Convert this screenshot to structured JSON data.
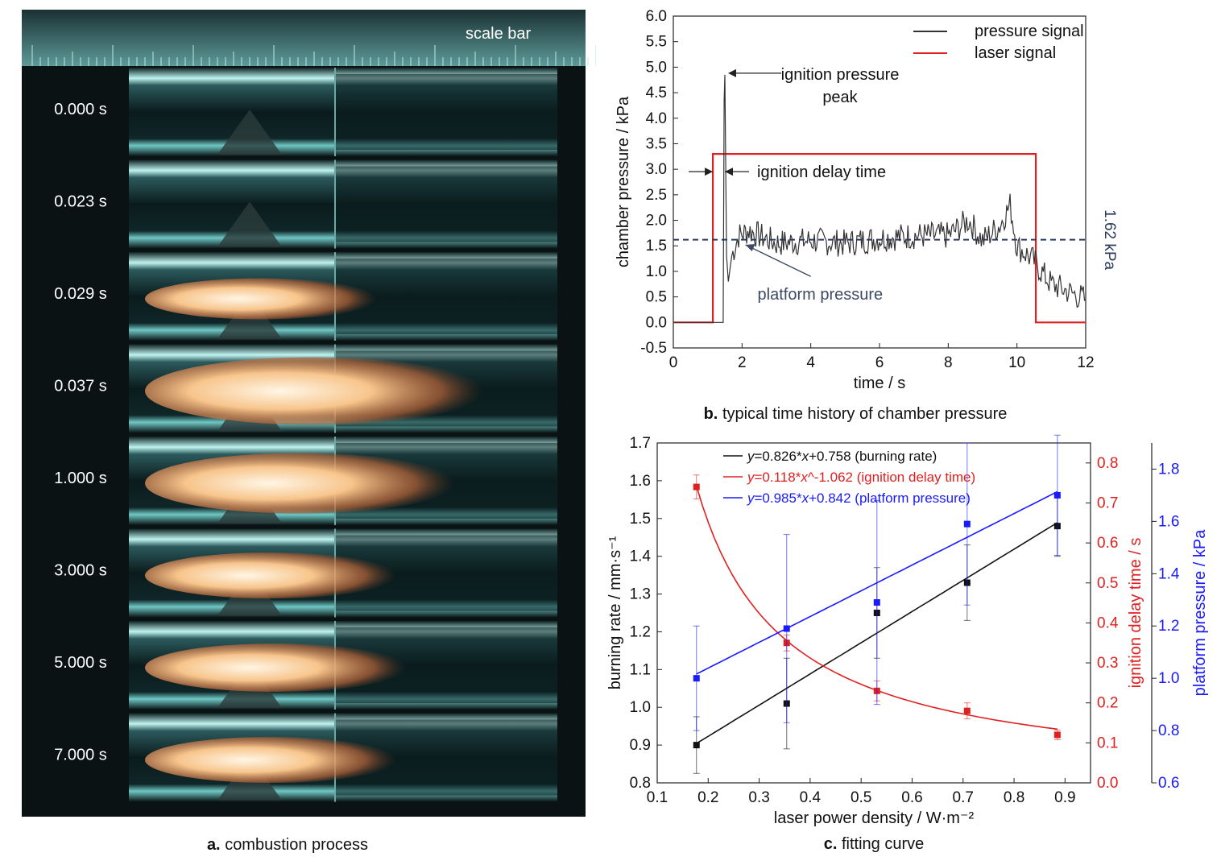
{
  "panel_a": {
    "scale_bar_label": "scale bar",
    "frames": [
      "0.000 s",
      "0.023 s",
      "0.029 s",
      "0.037 s",
      "1.000 s",
      "3.000 s",
      "5.000 s",
      "7.000 s"
    ],
    "flame_intensity": [
      0,
      0,
      0.45,
      1.0,
      0.85,
      0.55,
      0.6,
      0.55
    ],
    "caption_letter": "a.",
    "caption_text": "combustion process"
  },
  "chart_data": [
    {
      "type": "line",
      "title": "",
      "caption_letter": "b.",
      "caption_text": "typical time history of chamber pressure",
      "xlabel": "time / s",
      "ylabel": "chamber pressure / kPa",
      "xlim": [
        0,
        12
      ],
      "ylim": [
        -0.5,
        6.0
      ],
      "xticks": [
        "0",
        "2",
        "4",
        "6",
        "8",
        "10",
        "12"
      ],
      "yticks": [
        "-0.5",
        "0.0",
        "0.5",
        "1.0",
        "1.5",
        "2.0",
        "2.5",
        "3.0",
        "3.5",
        "4.0",
        "4.5",
        "5.0",
        "5.5",
        "6.0"
      ],
      "legend": {
        "position": "top-right",
        "entries": [
          {
            "name": "pressure signal",
            "color": "#333333"
          },
          {
            "name": "laser signal",
            "color": "#e02020"
          }
        ]
      },
      "series": [
        {
          "name": "laser signal",
          "color": "#e02020",
          "x": [
            0,
            1.15,
            1.15,
            10.55,
            10.55,
            12
          ],
          "y": [
            0.0,
            0.0,
            3.3,
            3.3,
            0.0,
            0.0
          ]
        },
        {
          "name": "pressure signal",
          "color": "#333333",
          "x": [
            0,
            1.45,
            1.48,
            1.5,
            1.55,
            1.6,
            1.7,
            1.9,
            2.2,
            2.5,
            3.0,
            4.0,
            5.0,
            6.0,
            7.0,
            8.0,
            8.6,
            9.0,
            9.5,
            9.8,
            10.0,
            10.5,
            10.7,
            11.0,
            11.5,
            12.0
          ],
          "y": [
            0.0,
            0.0,
            4.35,
            4.85,
            1.3,
            0.8,
            1.3,
            1.7,
            1.8,
            1.7,
            1.55,
            1.6,
            1.55,
            1.65,
            1.7,
            1.7,
            2.0,
            1.6,
            1.9,
            2.3,
            1.5,
            1.2,
            1.0,
            0.75,
            0.6,
            0.45
          ]
        }
      ],
      "reference_line": {
        "y": 1.62,
        "label": "1.62 kPa",
        "color": "#2b3a5c"
      },
      "annotations": [
        {
          "text_lines": [
            "ignition pressure",
            "peak"
          ],
          "x": 1.5,
          "y": 4.85
        },
        {
          "text_lines": [
            "ignition delay time"
          ],
          "x": 1.3,
          "y": 3.0
        },
        {
          "text_lines": [
            "platform pressure"
          ],
          "x": 2.3,
          "y": 1.45,
          "color": "#3c4a66"
        }
      ]
    },
    {
      "type": "scatter",
      "title": "",
      "caption_letter": "c.",
      "caption_text": "fitting curve",
      "xlabel": "laser power density / W·m⁻²",
      "xlim": [
        0.1,
        0.95
      ],
      "xticks": [
        "0.1",
        "0.2",
        "0.3",
        "0.4",
        "0.5",
        "0.6",
        "0.7",
        "0.8",
        "0.9"
      ],
      "y_axes": [
        {
          "label": "burning rate / mm·s⁻¹",
          "ylim": [
            0.8,
            1.7
          ],
          "color": "#111111",
          "ticks": [
            "0.8",
            "0.9",
            "1.0",
            "1.1",
            "1.2",
            "1.3",
            "1.4",
            "1.5",
            "1.6",
            "1.7"
          ]
        },
        {
          "label": "ignition delay time / s",
          "ylim": [
            0.0,
            0.85
          ],
          "color": "#e02020",
          "ticks": [
            "0.0",
            "0.1",
            "0.2",
            "0.3",
            "0.4",
            "0.5",
            "0.6",
            "0.7",
            "0.8"
          ]
        },
        {
          "label": "platform pressure / kPa",
          "ylim": [
            0.6,
            1.9
          ],
          "color": "#1a1aff",
          "ticks": [
            "0.6",
            "0.8",
            "1.0",
            "1.2",
            "1.4",
            "1.6",
            "1.8"
          ]
        }
      ],
      "legend": {
        "position": "top-left",
        "entries": [
          {
            "var": "y",
            "rest": "=0.826*",
            "var2": "x",
            "rest2": "+0.758 (burning rate)",
            "color": "#111111"
          },
          {
            "var": "y",
            "rest": "=0.118*",
            "var2": "x",
            "rest2": "^-1.062 (ignition delay time)",
            "color": "#e02020"
          },
          {
            "var": "y",
            "rest": "=0.985*",
            "var2": "x",
            "rest2": "+0.842 (platform pressure)",
            "color": "#1a1aff"
          }
        ]
      },
      "series": [
        {
          "name": "burning rate",
          "axis": 0,
          "color": "#111111",
          "x": [
            0.177,
            0.354,
            0.531,
            0.708,
            0.885
          ],
          "y": [
            0.9,
            1.01,
            1.25,
            1.33,
            1.48
          ],
          "err": [
            0.075,
            0.12,
            0.12,
            0.1,
            0.08
          ],
          "fit": {
            "kind": "linear",
            "a": 0.826,
            "b": 0.758
          }
        },
        {
          "name": "ignition delay time",
          "axis": 1,
          "color": "#e02020",
          "x": [
            0.177,
            0.354,
            0.531,
            0.708,
            0.885
          ],
          "y": [
            0.74,
            0.35,
            0.23,
            0.18,
            0.12
          ],
          "err": [
            0.03,
            0.02,
            0.025,
            0.02,
            0.012
          ],
          "fit": {
            "kind": "power",
            "a": 0.118,
            "b": -1.062
          }
        },
        {
          "name": "platform pressure",
          "axis": 2,
          "color": "#1a1aff",
          "x": [
            0.177,
            0.354,
            0.531,
            0.708,
            0.885
          ],
          "y": [
            1.0,
            1.19,
            1.29,
            1.59,
            1.7
          ],
          "err": [
            0.2,
            0.36,
            0.39,
            0.31,
            0.23
          ],
          "fit": {
            "kind": "linear",
            "a": 0.985,
            "b": 0.842
          }
        }
      ]
    }
  ]
}
